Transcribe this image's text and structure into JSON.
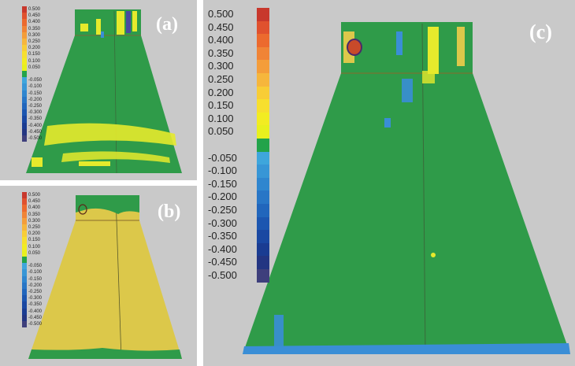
{
  "panels": {
    "a": {
      "label": "(a)"
    },
    "b": {
      "label": "(b)"
    },
    "c": {
      "label": "(c)"
    }
  },
  "color_scale": {
    "ticks": [
      "0.500",
      "0.450",
      "0.400",
      "0.350",
      "0.300",
      "0.250",
      "0.200",
      "0.150",
      "0.100",
      "0.050",
      "",
      "-0.050",
      "-0.100",
      "-0.150",
      "-0.200",
      "-0.250",
      "-0.300",
      "-0.350",
      "-0.400",
      "-0.450",
      "-0.500"
    ],
    "colors": [
      "#c8382c",
      "#e0512e",
      "#ec6a2e",
      "#f08436",
      "#f49d3a",
      "#f6b63c",
      "#f8cd36",
      "#f7df2e",
      "#f2ec22",
      "#e8f01e",
      "#22a34a",
      "#3ea6dc",
      "#3796d6",
      "#2f86cf",
      "#2876c6",
      "#2166bc",
      "#1c56b0",
      "#1a48a2",
      "#1a3c92",
      "#233582",
      "#3e3f7c"
    ]
  },
  "colors": {
    "panel_bg": "#c9c9c9",
    "surface_green": "#2f9b49",
    "surface_yellow": "#dcc84a",
    "deviation_yellow": "#e6ea2c",
    "deviation_blue": "#3a8ed6"
  }
}
